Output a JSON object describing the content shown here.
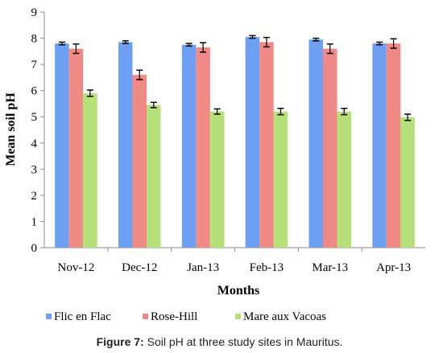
{
  "chart_data": {
    "type": "bar",
    "categories": [
      "Nov-12",
      "Dec-12",
      "Jan-13",
      "Feb-13",
      "Mar-13",
      "Apr-13"
    ],
    "series": [
      {
        "name": "Flic en Flac",
        "values": [
          7.8,
          7.85,
          7.75,
          8.05,
          7.95,
          7.8
        ],
        "errors": [
          0.05,
          0.05,
          0.05,
          0.05,
          0.05,
          0.05
        ],
        "color": "#6f9ff0"
      },
      {
        "name": "Rose-Hill",
        "values": [
          7.6,
          6.6,
          7.65,
          7.85,
          7.6,
          7.8
        ],
        "errors": [
          0.18,
          0.18,
          0.18,
          0.18,
          0.18,
          0.18
        ],
        "color": "#f08a86"
      },
      {
        "name": "Mare aux Vacoas",
        "values": [
          5.9,
          5.45,
          5.2,
          5.2,
          5.2,
          4.98
        ],
        "errors": [
          0.12,
          0.1,
          0.1,
          0.12,
          0.12,
          0.12
        ],
        "color": "#b7e07a"
      }
    ],
    "xlabel": "Months",
    "ylabel": "Mean soil pH",
    "ylim": [
      0,
      9
    ],
    "yticks": [
      "0",
      "1",
      "2",
      "3",
      "4",
      "5",
      "6",
      "7",
      "8",
      "9"
    ],
    "legend_position": "bottom",
    "grid": false
  },
  "caption": {
    "label": "Figure 7:",
    "text": " Soil pH at three study sites in Mauritus."
  }
}
